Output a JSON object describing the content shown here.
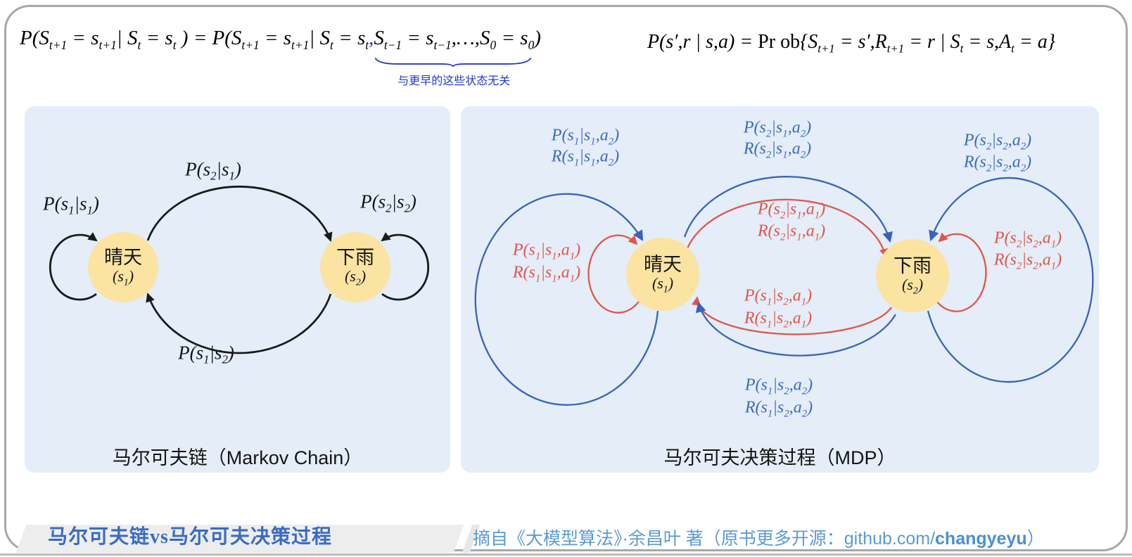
{
  "formulas": {
    "markov_property": {
      "main": "P(S_{t+1} = s_{t+1}|  S_t = s_t )  =  P(S_{t+1} = s_{t+1}|  S_t = s_t",
      "comma": ",",
      "braced": "S_{t−1} = s_{t−1},…,S_0 = s_0",
      "close": ")",
      "note": "与更早的这些状态无关"
    },
    "mdp_dynamics": {
      "lhs": "P(s′,r | s,a) = ",
      "prob": "Pr ob",
      "rhs": "{S_{t+1} = s′,R_{t+1} = r  |  S_t = s,A_t = a}"
    }
  },
  "markov_chain_panel": {
    "caption": "马尔可夫链（Markov Chain）",
    "nodes": {
      "s1": {
        "label": "晴天",
        "symbol": "(s_1)"
      },
      "s2": {
        "label": "下雨",
        "symbol": "(s_2)"
      }
    },
    "edges": {
      "s1_self": "P(s_1|s_1)",
      "s1_to_s2": "P(s_2|s_1)",
      "s2_self": "P(s_2|s_2)",
      "s2_to_s1": "P(s_1|s_2)"
    }
  },
  "mdp_panel": {
    "caption": "马尔可夫决策过程（MDP）",
    "nodes": {
      "s1": {
        "label": "晴天",
        "symbol": "(s_1)"
      },
      "s2": {
        "label": "下雨",
        "symbol": "(s_2)"
      }
    },
    "edges": {
      "s1_self_a2": {
        "p": "P(s_1|s_1,a_2)",
        "r": "R(s_1|s_1,a_2)"
      },
      "s1_self_a1": {
        "p": "P(s_1|s_1,a_1)",
        "r": "R(s_1|s_1,a_1)"
      },
      "s1_to_s2_a2": {
        "p": "P(s_2|s_1,a_2)",
        "r": "R(s_2|s_1,a_2)"
      },
      "s1_to_s2_a1": {
        "p": "P(s_2|s_1,a_1)",
        "r": "R(s_2|s_1,a_1)"
      },
      "s2_to_s1_a1": {
        "p": "P(s_1|s_2,a_1)",
        "r": "R(s_1|s_2,a_1)"
      },
      "s2_to_s1_a2": {
        "p": "P(s_1|s_2,a_2)",
        "r": "R(s_1|s_2,a_2)"
      },
      "s2_self_a2": {
        "p": "P(s_2|s_2,a_2)",
        "r": "R(s_2|s_2,a_2)"
      },
      "s2_self_a1": {
        "p": "P(s_2|s_2,a_1)",
        "r": "R(s_2|s_2,a_1)"
      }
    }
  },
  "footer": {
    "title": "马尔可夫链vs马尔可夫决策过程",
    "source_prefix": "摘自《大模型算法》·余昌叶 著（原书更多开源：github.com/",
    "source_bold": "changyeyu",
    "source_suffix": "）"
  },
  "colors": {
    "panel_bg": "#e4edf8",
    "node_fill": "#fbe3a2",
    "chain_arrow_black": "#1a1a1a",
    "action_a1_red": "#e0564a",
    "action_a2_blue": "#3a62b8",
    "brace_blue": "#2638cc",
    "footer_title_blue": "#3a6bc5",
    "source_blue": "#5b9bd5",
    "frame_border": "#a8a8a8"
  }
}
